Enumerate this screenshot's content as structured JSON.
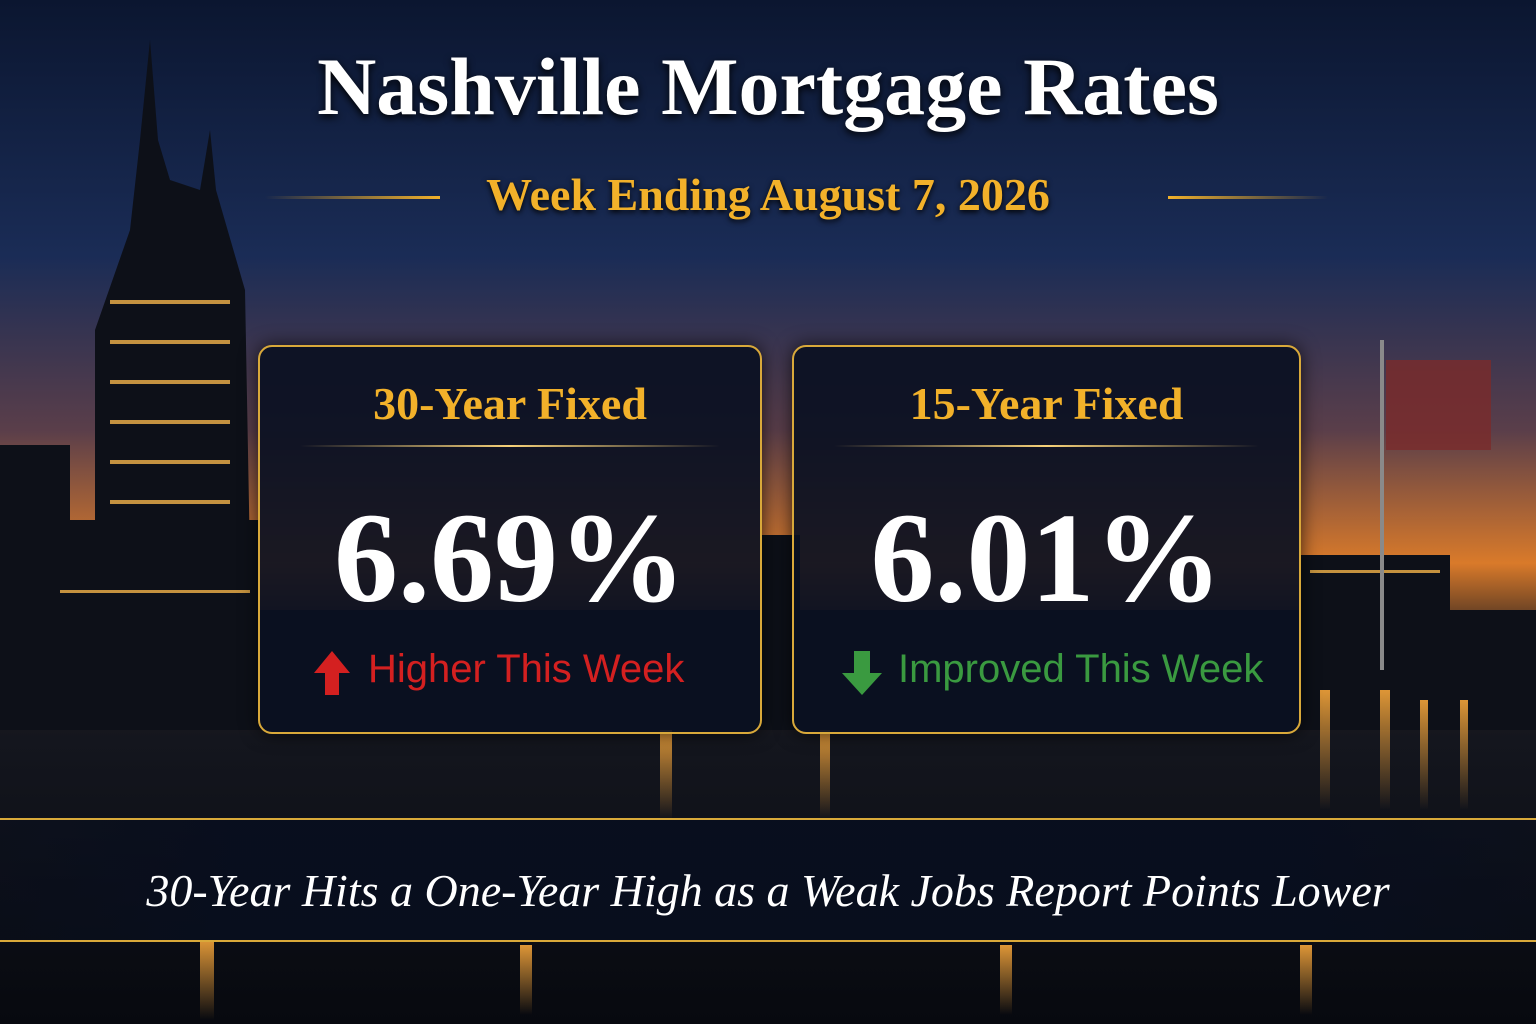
{
  "header": {
    "title": "Nashville Mortgage Rates",
    "subtitle": "Week Ending August 7, 2026"
  },
  "cards": [
    {
      "label": "30-Year Fixed",
      "rate": "6.69%",
      "change": "Higher This Week"
    },
    {
      "label": "15-Year Fixed",
      "rate": "6.01%",
      "change": "Improved This Week"
    }
  ],
  "banner": "30-Year Hits a One-Year High as a Weak Jobs Report Points Lower"
}
